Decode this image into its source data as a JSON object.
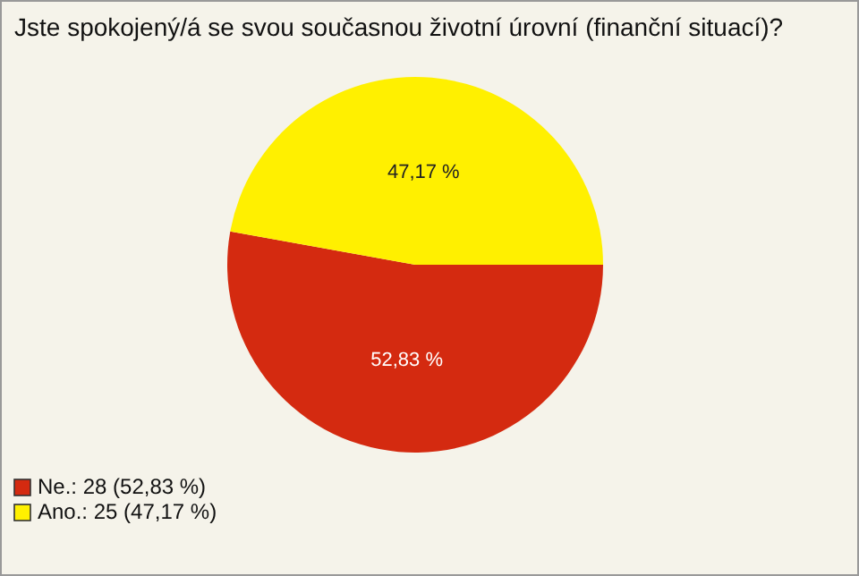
{
  "chart_data": {
    "type": "pie",
    "title": "Jste spokojený/á se svou současnou životní úrovní (finanční situací)?",
    "categories": [
      "Ne.: 28 (52,83 %)",
      "Ano.: 25 (47,17 %)"
    ],
    "values": [
      52.83,
      47.17
    ],
    "value_labels": [
      "52,83 %",
      "47,17 %"
    ],
    "colors": [
      "#d42a10",
      "#fff000"
    ],
    "legend": "bottom left"
  }
}
